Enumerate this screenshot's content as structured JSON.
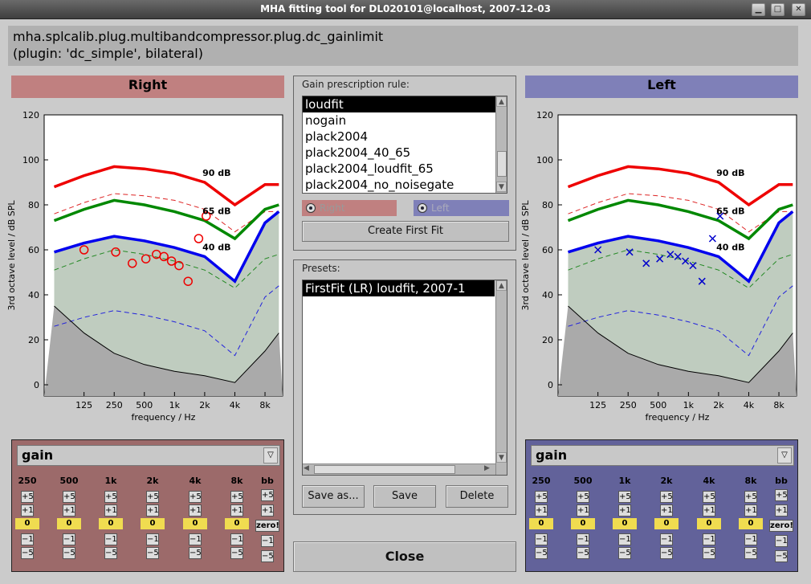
{
  "window": {
    "title": "MHA fitting tool for DL020101@localhost, 2007-12-03",
    "minimize": "▁",
    "maximize": "□",
    "close": "✕"
  },
  "header": {
    "line1": "mha.splcalib.plug.multibandcompressor.plug.dc_gainlimit",
    "line2": "(plugin: 'dc_simple', bilateral)"
  },
  "right": {
    "label": "Right",
    "color": "#c08080",
    "panel_color": "#9c6a6a"
  },
  "left": {
    "label": "Left",
    "color": "#7f80b8",
    "panel_color": "#62629a"
  },
  "chart": {
    "ylabel": "3rd octave level / dB SPL",
    "xlabel": "frequency / Hz",
    "yticks": [
      "120",
      "100",
      "80",
      "60",
      "40",
      "20",
      "0"
    ],
    "xticks": [
      "125",
      "250",
      "500",
      "1k",
      "2k",
      "4k",
      "8k"
    ],
    "curve_labels": [
      "90 dB",
      "65 dB",
      "40 dB"
    ]
  },
  "chart_data": [
    {
      "type": "line",
      "title": "Right",
      "xlabel": "frequency / Hz",
      "ylabel": "3rd octave level / dB SPL",
      "ylim": [
        -5,
        120
      ],
      "x_hz": [
        63,
        125,
        250,
        500,
        1000,
        2000,
        4000,
        8000,
        11000
      ],
      "series": [
        {
          "name": "90 dB",
          "values": [
            88,
            93,
            97,
            96,
            94,
            90,
            80,
            89,
            89
          ]
        },
        {
          "name": "65 dB",
          "values": [
            73,
            78,
            82,
            80,
            77,
            73,
            65,
            78,
            80
          ]
        },
        {
          "name": "40 dB",
          "values": [
            59,
            63,
            66,
            64,
            61,
            57,
            46,
            72,
            77
          ]
        },
        {
          "name": "threshold",
          "values": [
            35,
            23,
            14,
            9,
            6,
            4,
            1,
            15,
            23
          ]
        }
      ],
      "markers": "circle",
      "marker_values": [
        60,
        59,
        54,
        56,
        58,
        57,
        55,
        53,
        46,
        65,
        75
      ]
    },
    {
      "type": "line",
      "title": "Left",
      "xlabel": "frequency / Hz",
      "ylabel": "3rd octave level / dB SPL",
      "ylim": [
        -5,
        120
      ],
      "x_hz": [
        63,
        125,
        250,
        500,
        1000,
        2000,
        4000,
        8000,
        11000
      ],
      "series": [
        {
          "name": "90 dB",
          "values": [
            88,
            93,
            97,
            96,
            94,
            90,
            80,
            89,
            89
          ]
        },
        {
          "name": "65 dB",
          "values": [
            73,
            78,
            82,
            80,
            77,
            73,
            65,
            78,
            80
          ]
        },
        {
          "name": "40 dB",
          "values": [
            59,
            63,
            66,
            64,
            61,
            57,
            46,
            72,
            77
          ]
        },
        {
          "name": "threshold",
          "values": [
            35,
            23,
            14,
            9,
            6,
            4,
            1,
            15,
            23
          ]
        }
      ],
      "markers": "x",
      "marker_values": [
        60,
        59,
        54,
        56,
        58,
        57,
        55,
        53,
        46,
        65,
        75
      ]
    }
  ],
  "rule": {
    "title": "Gain prescription rule:",
    "items": [
      "loudfit",
      "nogain",
      "plack2004",
      "plack2004_40_65",
      "plack2004_loudfit_65",
      "plack2004_no_noisegate"
    ],
    "radio_right": "Right",
    "radio_left": "Left",
    "create_button": "Create First Fit"
  },
  "presets": {
    "title": "Presets:",
    "items": [
      "FirstFit (LR) loudfit, 2007-1"
    ],
    "save_as": "Save as...",
    "save": "Save",
    "delete": "Delete"
  },
  "close_button": "Close",
  "gain": {
    "selected": "gain",
    "arrow": "▽",
    "freqs": [
      "250",
      "500",
      "1k",
      "2k",
      "4k",
      "8k"
    ],
    "bb": "bb",
    "plus5": "+5",
    "plus1": "+1",
    "value": "0",
    "minus1": "−1",
    "minus5": "−5",
    "zero": "zero!"
  }
}
